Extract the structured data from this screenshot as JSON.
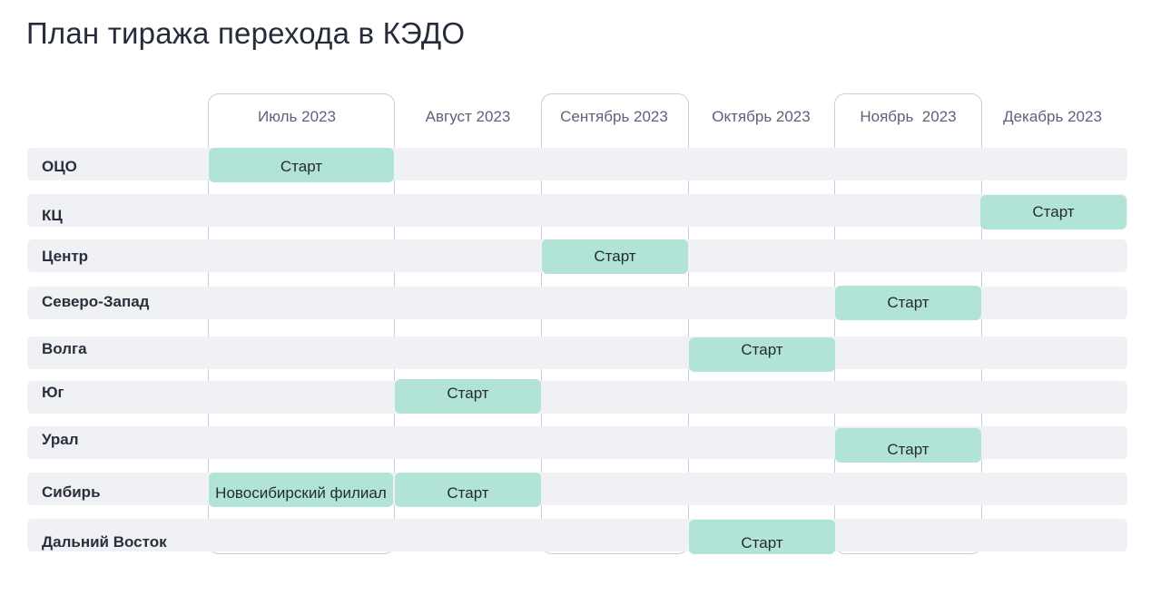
{
  "page": {
    "title": "План тиража перехода в КЭДО"
  },
  "months": [
    {
      "label": "Июль 2023"
    },
    {
      "label": "Август 2023"
    },
    {
      "label": "Сентябрь 2023"
    },
    {
      "label": "Октябрь 2023"
    },
    {
      "label": "Ноябрь  2023"
    },
    {
      "label": "Декабрь 2023"
    }
  ],
  "rows": [
    {
      "label": "ОЦО",
      "events": [
        {
          "month": "Июль 2023",
          "text": "Старт"
        }
      ]
    },
    {
      "label": "КЦ",
      "events": [
        {
          "month": "Декабрь 2023",
          "text": "Старт"
        }
      ]
    },
    {
      "label": "Центр",
      "events": [
        {
          "month": "Сентябрь 2023",
          "text": "Старт"
        }
      ]
    },
    {
      "label": "Северо-Запад",
      "events": [
        {
          "month": "Ноябрь  2023",
          "text": "Старт"
        }
      ]
    },
    {
      "label": "Волга",
      "events": [
        {
          "month": "Октябрь 2023",
          "text": "Старт"
        }
      ]
    },
    {
      "label": "Юг",
      "events": [
        {
          "month": "Август 2023",
          "text": "Старт"
        }
      ]
    },
    {
      "label": "Урал",
      "events": [
        {
          "month": "Ноябрь  2023",
          "text": "Старт"
        }
      ]
    },
    {
      "label": "Сибирь",
      "events": [
        {
          "month": "Июль 2023",
          "text": "Новосибирский филиал"
        },
        {
          "month": "Август 2023",
          "text": "Старт"
        }
      ]
    },
    {
      "label": "Дальний Восток",
      "events": [
        {
          "month": "Октябрь 2023",
          "text": "Старт"
        }
      ]
    }
  ],
  "colors": {
    "cell": "#b1e3d7",
    "band": "#f0f1f5",
    "outline": "#c9cdd9"
  }
}
